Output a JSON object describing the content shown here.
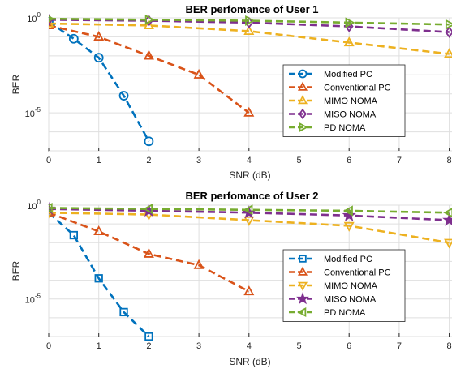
{
  "chart_data": [
    {
      "type": "line",
      "title": "BER perfomance of User 1",
      "xlabel": "SNR (dB)",
      "ylabel": "BER",
      "y_scale": "log",
      "xlim": [
        0,
        8
      ],
      "ylim_exp": [
        -7,
        0
      ],
      "x_ticks": [
        "0",
        "1",
        "2",
        "3",
        "4",
        "5",
        "6",
        "7",
        "8"
      ],
      "y_ticks": [
        {
          "label": "10",
          "exp": "0",
          "value_exp": 0
        },
        {
          "label": "10",
          "exp": "-5",
          "value_exp": -5
        }
      ],
      "legend_position": "center-right",
      "series": [
        {
          "name": "Modified PC",
          "color": "#0072BD",
          "marker": "circle",
          "x": [
            0,
            0.5,
            1,
            1.5,
            2
          ],
          "y_exp": [
            -0.2,
            -1.1,
            -2.1,
            -4.1,
            -6.5
          ]
        },
        {
          "name": "Conventional PC",
          "color": "#D95319",
          "marker": "triangle-up",
          "x": [
            0,
            1,
            2,
            3,
            4
          ],
          "y_exp": [
            -0.4,
            -1.0,
            -2.0,
            -3.0,
            -5.0
          ]
        },
        {
          "name": "MIMO NOMA",
          "color": "#EDB120",
          "marker": "triangle-up",
          "x": [
            0,
            2,
            4,
            6,
            8
          ],
          "y_exp": [
            -0.3,
            -0.4,
            -0.7,
            -1.3,
            -1.9
          ]
        },
        {
          "name": "MISO NOMA",
          "color": "#7E2F8E",
          "marker": "diamond",
          "x": [
            0,
            2,
            4,
            6,
            8
          ],
          "y_exp": [
            -0.1,
            -0.15,
            -0.25,
            -0.45,
            -0.75
          ]
        },
        {
          "name": "PD NOMA",
          "color": "#77AC30",
          "marker": "triangle-right",
          "x": [
            0,
            2,
            4,
            6,
            8
          ],
          "y_exp": [
            -0.05,
            -0.1,
            -0.15,
            -0.25,
            -0.35
          ]
        }
      ]
    },
    {
      "type": "line",
      "title": "BER perfomance of User 2",
      "xlabel": "SNR (dB)",
      "ylabel": "BER",
      "y_scale": "log",
      "xlim": [
        0,
        8
      ],
      "ylim_exp": [
        -7,
        0
      ],
      "x_ticks": [
        "0",
        "1",
        "2",
        "3",
        "4",
        "5",
        "6",
        "7",
        "8"
      ],
      "y_ticks": [
        {
          "label": "10",
          "exp": "0",
          "value_exp": 0
        },
        {
          "label": "10",
          "exp": "-5",
          "value_exp": -5
        }
      ],
      "legend_position": "center-right",
      "series": [
        {
          "name": "Modified PC",
          "color": "#0072BD",
          "marker": "square",
          "x": [
            0,
            0.5,
            1,
            1.5,
            2
          ],
          "y_exp": [
            -0.4,
            -1.6,
            -3.9,
            -5.7,
            -7.0
          ]
        },
        {
          "name": "Conventional PC",
          "color": "#D95319",
          "marker": "triangle-up",
          "x": [
            0,
            1,
            2,
            3,
            4
          ],
          "y_exp": [
            -0.4,
            -1.4,
            -2.6,
            -3.2,
            -4.6
          ]
        },
        {
          "name": "MIMO NOMA",
          "color": "#EDB120",
          "marker": "triangle-down",
          "x": [
            0,
            2,
            4,
            6,
            8
          ],
          "y_exp": [
            -0.4,
            -0.5,
            -0.8,
            -1.1,
            -2.0
          ]
        },
        {
          "name": "MISO NOMA",
          "color": "#7E2F8E",
          "marker": "star",
          "x": [
            0,
            2,
            4,
            6,
            8
          ],
          "y_exp": [
            -0.2,
            -0.3,
            -0.4,
            -0.55,
            -0.8
          ]
        },
        {
          "name": "PD NOMA",
          "color": "#77AC30",
          "marker": "triangle-left",
          "x": [
            0,
            2,
            4,
            6,
            8
          ],
          "y_exp": [
            -0.15,
            -0.2,
            -0.25,
            -0.3,
            -0.4
          ]
        }
      ]
    }
  ]
}
